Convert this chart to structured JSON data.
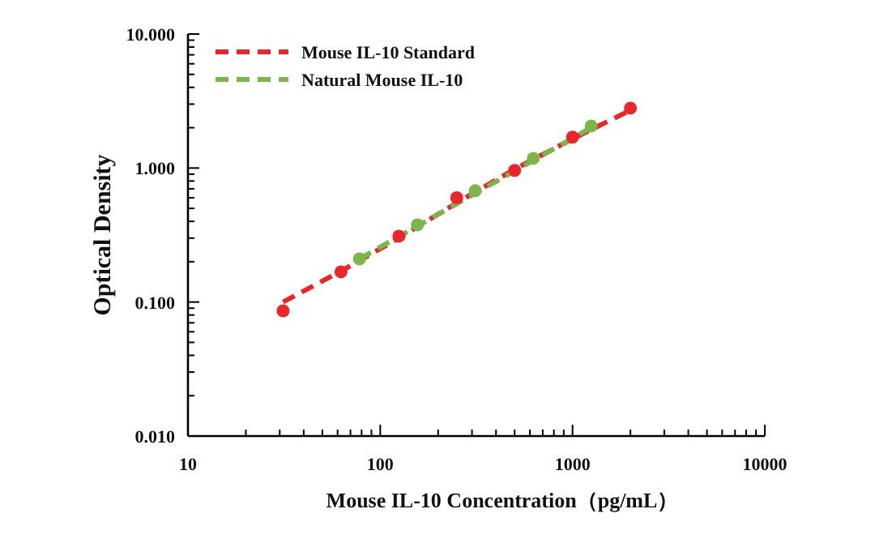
{
  "chart_data": {
    "type": "scatter",
    "xlabel": "Mouse IL-10 Concentration（pg/mL）",
    "ylabel": "Optical Density",
    "log": "xy",
    "legend": "top left",
    "xlim": [
      10,
      10000
    ],
    "ylim": [
      0.01,
      10
    ],
    "xticks": [
      10,
      100,
      1000,
      10000
    ],
    "yticks": [
      {
        "value": 0.01,
        "label": "0.010"
      },
      {
        "value": 0.1,
        "label": "0.100"
      },
      {
        "value": 1,
        "label": "1.000"
      },
      {
        "value": 10,
        "label": "10.000"
      }
    ],
    "series": [
      {
        "type": "scatter",
        "color": "#e8262b",
        "marker": "circle",
        "x": [
          31.25,
          62.5,
          125,
          250,
          500,
          1000,
          2000
        ],
        "values": [
          0.086,
          0.168,
          0.31,
          0.6,
          0.96,
          1.7,
          2.8
        ]
      },
      {
        "type": "line",
        "name": "Mouse IL-10 Standard",
        "color": "#e8262b",
        "line_style": "dashed",
        "marker": "none",
        "x": [
          31.25,
          62.5,
          125,
          250,
          500,
          1000,
          2000
        ],
        "values": [
          0.1,
          0.17,
          0.3,
          0.55,
          0.98,
          1.65,
          2.7
        ]
      },
      {
        "type": "scatter",
        "color": "#7ab648",
        "marker": "circle",
        "x": [
          78,
          156,
          312,
          625,
          1250
        ],
        "values": [
          0.21,
          0.377,
          0.677,
          1.18,
          2.06
        ]
      },
      {
        "type": "line",
        "name": "Natural Mouse IL-10",
        "color": "#7ab648",
        "line_style": "dashed",
        "marker": "none",
        "x": [
          78,
          1250
        ],
        "values": [
          0.21,
          2.0
        ]
      }
    ]
  }
}
